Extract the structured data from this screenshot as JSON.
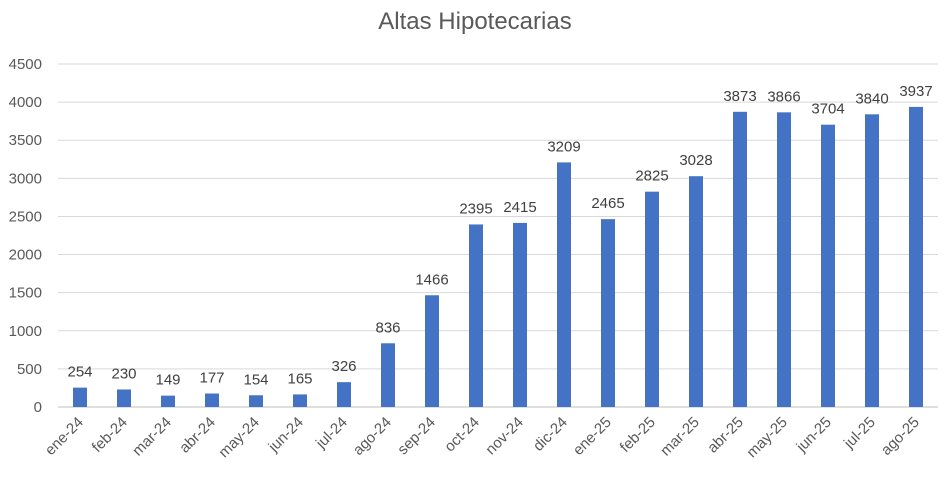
{
  "chart_data": {
    "type": "bar",
    "title": "Altas Hipotecarias",
    "xlabel": "",
    "ylabel": "",
    "ylim": [
      0,
      4500
    ],
    "yticks": [
      0,
      500,
      1000,
      1500,
      2000,
      2500,
      3000,
      3500,
      4000,
      4500
    ],
    "grid": true,
    "legend": "none",
    "bar_color": "#4472C4",
    "categories": [
      "ene-24",
      "feb-24",
      "mar-24",
      "abr-24",
      "may-24",
      "jun-24",
      "jul-24",
      "ago-24",
      "sep-24",
      "oct-24",
      "nov-24",
      "dic-24",
      "ene-25",
      "feb-25",
      "mar-25",
      "abr-25",
      "may-25",
      "jun-25",
      "jul-25",
      "ago-25"
    ],
    "values": [
      254,
      230,
      149,
      177,
      154,
      165,
      326,
      836,
      1466,
      2395,
      2415,
      3209,
      2465,
      2825,
      3028,
      3873,
      3866,
      3704,
      3840,
      3937
    ]
  }
}
